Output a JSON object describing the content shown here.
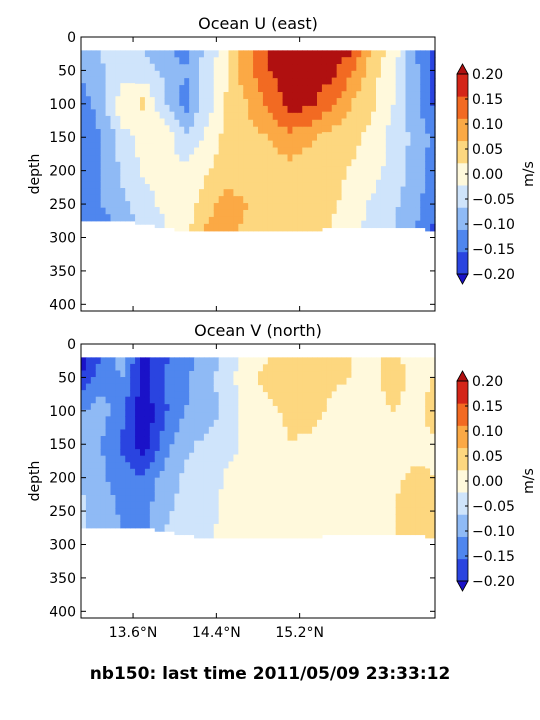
{
  "figure_title": "nb150: last time 2011/05/09 23:33:12",
  "colorbar": {
    "label": "m/s",
    "levels": [
      -0.2,
      -0.15,
      -0.1,
      -0.05,
      0,
      0.05,
      0.1,
      0.15,
      0.2
    ],
    "tick_labels": [
      "0.20",
      "0.15",
      "0.10",
      "0.05",
      "0.00",
      "−0.05",
      "−0.10",
      "−0.15",
      "−0.20"
    ],
    "colors": [
      "#2a44e0",
      "#4f86ee",
      "#8fbaf5",
      "#cfe4fb",
      "#fff9dc",
      "#fdd77f",
      "#fba945",
      "#f26a22",
      "#d42518"
    ],
    "under_color": "#1a12c8",
    "over_color": "#b01010"
  },
  "chart_data": [
    {
      "type": "heatmap",
      "title": "Ocean U (east)",
      "xlabel": "",
      "ylabel": "depth",
      "xlim": [
        13.1,
        16.5
      ],
      "ylim": [
        410,
        0
      ],
      "yticks": [
        0,
        50,
        100,
        150,
        200,
        250,
        300,
        350,
        400
      ],
      "ytick_labels": [
        "0",
        "50",
        "100",
        "150",
        "200",
        "250",
        "300",
        "350",
        "400"
      ],
      "xticks": [
        13.6,
        14.4,
        15.2
      ],
      "xtick_labels": [],
      "x": [
        13.1,
        13.3,
        13.5,
        13.7,
        13.9,
        14.1,
        14.3,
        14.5,
        14.7,
        14.9,
        15.1,
        15.3,
        15.5,
        15.7,
        15.9,
        16.1,
        16.3,
        16.5
      ],
      "depth": [
        20,
        50,
        100,
        150,
        200,
        250,
        280
      ],
      "depth_extent_by_x": [
        275,
        275,
        275,
        280,
        285,
        290,
        290,
        290,
        290,
        290,
        290,
        290,
        285,
        285,
        285,
        285,
        285,
        290
      ],
      "values": [
        [
          -0.1,
          -0.04,
          -0.02,
          -0.05,
          -0.08,
          -0.12,
          -0.04,
          0.03,
          0.14,
          0.21,
          0.22,
          0.22,
          0.22,
          0.21,
          0.08,
          0.04,
          -0.1,
          -0.18
        ],
        [
          -0.09,
          -0.06,
          -0.03,
          -0.03,
          -0.06,
          -0.1,
          -0.02,
          0.04,
          0.14,
          0.2,
          0.22,
          0.22,
          0.22,
          0.16,
          0.07,
          0.01,
          -0.08,
          -0.17
        ],
        [
          -0.13,
          -0.07,
          0.04,
          0.06,
          -0.04,
          -0.12,
          -0.03,
          0.06,
          0.1,
          0.16,
          0.22,
          0.21,
          0.16,
          0.1,
          0.06,
          0.0,
          -0.08,
          -0.16
        ],
        [
          -0.15,
          -0.1,
          -0.02,
          0.02,
          0.03,
          -0.04,
          0.01,
          0.07,
          0.09,
          0.1,
          0.14,
          0.11,
          0.08,
          0.07,
          0.03,
          -0.02,
          -0.06,
          -0.12
        ],
        [
          -0.13,
          -0.1,
          -0.04,
          0.01,
          0.02,
          0.01,
          0.04,
          0.08,
          0.06,
          0.08,
          0.08,
          0.07,
          0.08,
          0.04,
          0.02,
          -0.02,
          -0.07,
          -0.12
        ],
        [
          -0.12,
          -0.1,
          -0.06,
          -0.02,
          0.01,
          0.02,
          0.08,
          0.12,
          0.1,
          0.09,
          0.07,
          0.06,
          0.06,
          0.03,
          -0.01,
          -0.04,
          -0.08,
          -0.14
        ],
        [
          -0.1,
          -0.12,
          -0.08,
          -0.04,
          0.0,
          0.03,
          0.1,
          0.12,
          0.09,
          0.08,
          0.06,
          0.05,
          0.05,
          0.02,
          -0.02,
          -0.05,
          -0.09,
          -0.16
        ]
      ]
    },
    {
      "type": "heatmap",
      "title": "Ocean V (north)",
      "xlabel": "",
      "ylabel": "depth",
      "xlim": [
        13.1,
        16.5
      ],
      "ylim": [
        410,
        0
      ],
      "yticks": [
        0,
        50,
        100,
        150,
        200,
        250,
        300,
        350,
        400
      ],
      "ytick_labels": [
        "0",
        "50",
        "100",
        "150",
        "200",
        "250",
        "300",
        "350",
        "400"
      ],
      "xticks": [
        13.6,
        14.4,
        15.2
      ],
      "xtick_labels": [
        "13.6°N",
        "14.4°N",
        "15.2°N"
      ],
      "x": [
        13.1,
        13.3,
        13.5,
        13.7,
        13.9,
        14.1,
        14.3,
        14.5,
        14.7,
        14.9,
        15.1,
        15.3,
        15.5,
        15.7,
        15.9,
        16.1,
        16.3,
        16.5
      ],
      "depth": [
        20,
        50,
        100,
        150,
        200,
        250,
        280
      ],
      "depth_extent_by_x": [
        275,
        275,
        275,
        275,
        280,
        285,
        290,
        290,
        290,
        290,
        290,
        290,
        285,
        285,
        285,
        285,
        285,
        290
      ],
      "values": [
        [
          -0.24,
          -0.14,
          -0.08,
          -0.22,
          -0.16,
          -0.12,
          -0.08,
          -0.03,
          0.02,
          0.05,
          0.09,
          0.06,
          0.07,
          0.05,
          0.03,
          0.07,
          0.02,
          0.04
        ],
        [
          -0.18,
          -0.12,
          -0.1,
          -0.22,
          -0.14,
          -0.11,
          -0.07,
          -0.02,
          0.03,
          0.07,
          0.09,
          0.08,
          0.06,
          0.05,
          0.04,
          0.08,
          0.03,
          0.05
        ],
        [
          -0.1,
          -0.08,
          -0.14,
          -0.24,
          -0.16,
          -0.1,
          -0.08,
          -0.03,
          0.02,
          0.04,
          0.06,
          0.07,
          0.04,
          0.03,
          0.02,
          0.05,
          0.02,
          0.08
        ],
        [
          -0.08,
          -0.1,
          -0.16,
          -0.24,
          -0.12,
          -0.06,
          -0.04,
          -0.02,
          0.01,
          0.02,
          0.05,
          0.04,
          0.02,
          0.02,
          0.01,
          0.03,
          0.03,
          0.04
        ],
        [
          -0.05,
          -0.09,
          -0.13,
          -0.14,
          -0.08,
          -0.04,
          -0.03,
          0.01,
          0.02,
          0.01,
          0.03,
          0.03,
          0.01,
          0.02,
          0.02,
          0.04,
          0.06,
          0.05
        ],
        [
          -0.04,
          -0.07,
          -0.11,
          -0.12,
          -0.06,
          -0.03,
          -0.02,
          0.01,
          0.02,
          0.01,
          0.02,
          0.02,
          0.01,
          0.03,
          0.03,
          0.05,
          0.07,
          0.06
        ],
        [
          -0.05,
          -0.06,
          -0.1,
          -0.12,
          -0.05,
          -0.03,
          -0.01,
          0.02,
          0.02,
          0.01,
          0.02,
          0.03,
          0.02,
          0.03,
          0.03,
          0.05,
          0.07,
          0.09
        ]
      ]
    }
  ]
}
